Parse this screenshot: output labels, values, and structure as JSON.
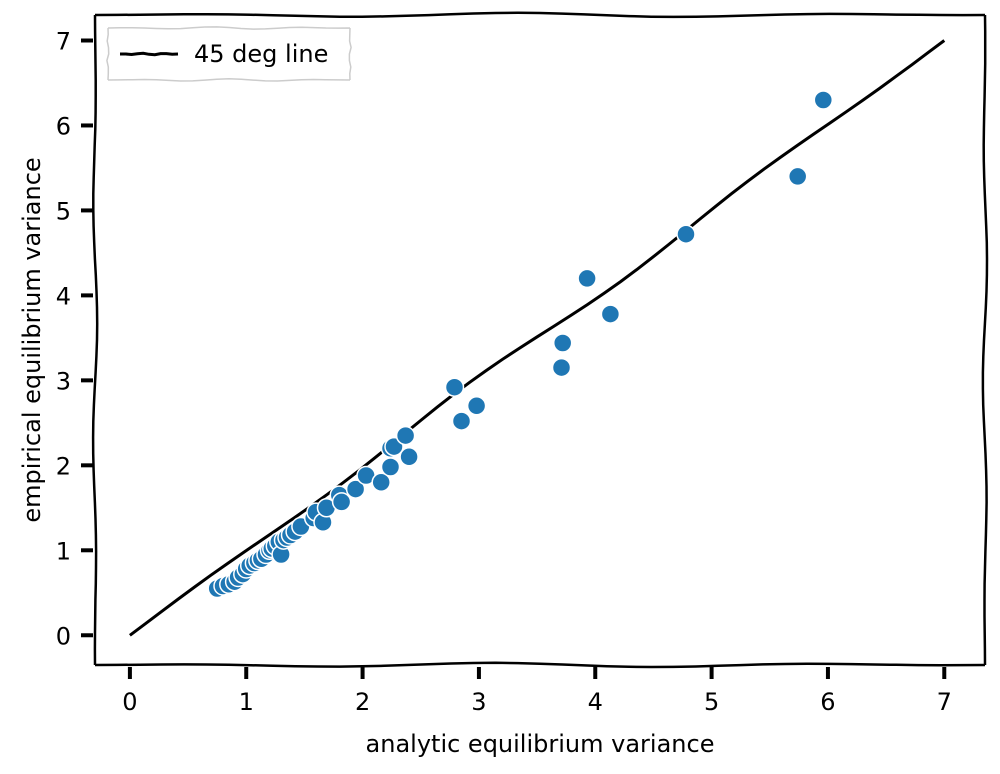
{
  "chart_data": {
    "type": "scatter",
    "xlabel": "analytic equilibrium variance",
    "ylabel": "empirical equilibrium variance",
    "xlim": [
      -0.3,
      7.35
    ],
    "ylim": [
      -0.35,
      7.3
    ],
    "x_ticks": [
      "0",
      "1",
      "2",
      "3",
      "4",
      "5",
      "6",
      "7"
    ],
    "y_ticks": [
      "0",
      "1",
      "2",
      "3",
      "4",
      "5",
      "6",
      "7"
    ],
    "grid": false,
    "legend": {
      "position": "top-left",
      "entries": [
        "45 deg line"
      ]
    },
    "colors": {
      "points": "#1f77b4",
      "line": "#000000",
      "point_edge": "#ffffff"
    },
    "line": {
      "name": "45 deg line",
      "x": [
        0,
        7
      ],
      "y": [
        0,
        7
      ]
    },
    "points": {
      "x": [
        0.75,
        0.8,
        0.85,
        0.9,
        0.93,
        0.97,
        1.0,
        1.03,
        1.07,
        1.1,
        1.13,
        1.17,
        1.2,
        1.22,
        1.25,
        1.28,
        1.3,
        1.32,
        1.35,
        1.38,
        1.42,
        1.47,
        1.58,
        1.6,
        1.66,
        1.69,
        1.8,
        1.82,
        1.94,
        2.03,
        2.16,
        2.24,
        2.24,
        2.27,
        2.37,
        2.4,
        2.79,
        2.85,
        2.98,
        3.71,
        3.72,
        3.93,
        4.13,
        4.78,
        5.74,
        5.96
      ],
      "y": [
        0.55,
        0.58,
        0.6,
        0.63,
        0.68,
        0.72,
        0.78,
        0.82,
        0.85,
        0.88,
        0.9,
        0.95,
        1.0,
        1.02,
        1.05,
        1.1,
        0.95,
        1.12,
        1.15,
        1.18,
        1.22,
        1.28,
        1.38,
        1.45,
        1.33,
        1.5,
        1.65,
        1.57,
        1.72,
        1.88,
        1.8,
        1.98,
        2.2,
        2.22,
        2.35,
        2.1,
        2.92,
        2.52,
        2.7,
        3.15,
        3.44,
        4.2,
        3.78,
        4.72,
        5.4,
        6.3
      ]
    }
  }
}
